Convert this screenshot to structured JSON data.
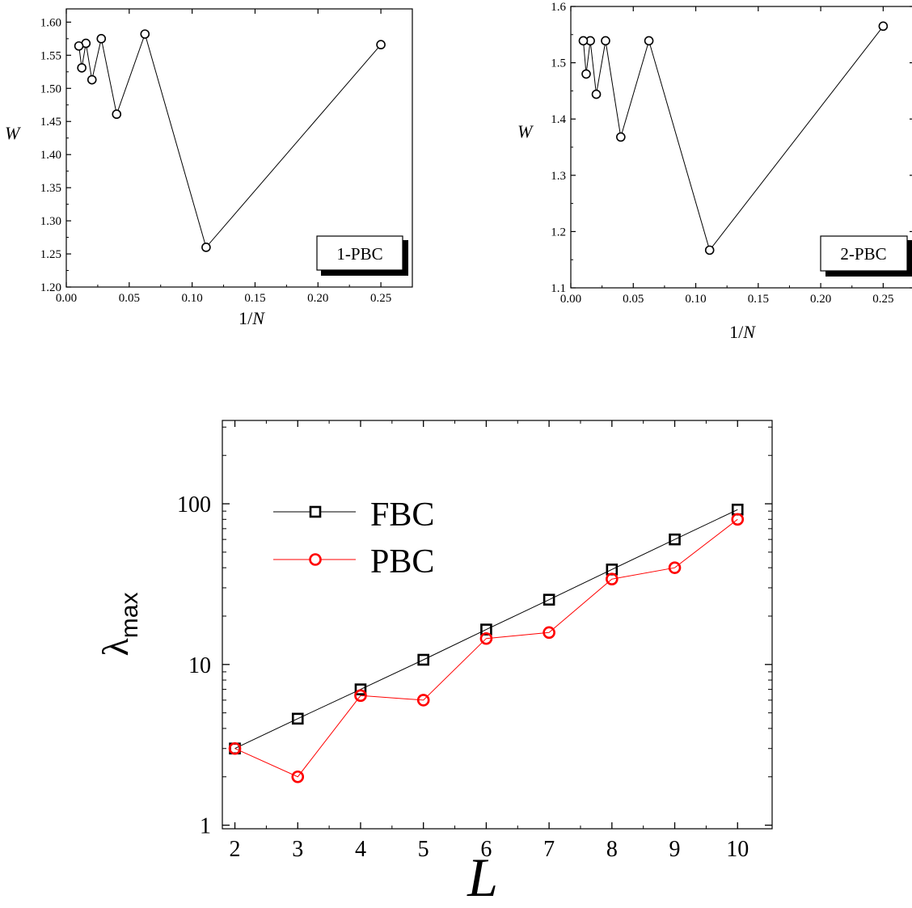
{
  "chart_data": [
    {
      "type": "line",
      "xlabel": "1/N",
      "ylabel": "W",
      "xlim": [
        0.0,
        0.275
      ],
      "ylim": [
        1.2,
        1.62
      ],
      "xticks": [
        "0.00",
        "0.05",
        "0.10",
        "0.15",
        "0.20",
        "0.25"
      ],
      "yticks": [
        "1.20",
        "1.25",
        "1.30",
        "1.35",
        "1.40",
        "1.45",
        "1.50",
        "1.55",
        "1.60"
      ],
      "legend_box": "1-PBC",
      "series": [
        {
          "marker": "circle",
          "x": [
            0.25,
            0.1111,
            0.0625,
            0.04,
            0.0278,
            0.0204,
            0.0156,
            0.0123,
            0.01
          ],
          "y": [
            1.566,
            1.26,
            1.582,
            1.461,
            1.575,
            1.513,
            1.568,
            1.531,
            1.564
          ]
        }
      ]
    },
    {
      "type": "line",
      "xlabel": "1/N",
      "ylabel": "W",
      "xlim": [
        0.0,
        0.275
      ],
      "ylim": [
        1.1,
        1.6
      ],
      "xticks": [
        "0.00",
        "0.05",
        "0.10",
        "0.15",
        "0.20",
        "0.25"
      ],
      "yticks": [
        "1.1",
        "1.2",
        "1.3",
        "1.4",
        "1.5",
        "1.6"
      ],
      "legend_box": "2-PBC",
      "series": [
        {
          "marker": "circle",
          "x": [
            0.25,
            0.1111,
            0.0625,
            0.04,
            0.0278,
            0.0204,
            0.0156,
            0.0123,
            0.01
          ],
          "y": [
            1.565,
            1.167,
            1.539,
            1.368,
            1.539,
            1.444,
            1.539,
            1.48,
            1.539
          ]
        }
      ]
    },
    {
      "type": "line",
      "xlabel": "L",
      "ylabel": "λmax",
      "xlim": [
        1.8,
        10.55
      ],
      "ylim": [
        0.95,
        330
      ],
      "yscale": "log",
      "xticks": [
        "2",
        "3",
        "4",
        "5",
        "6",
        "7",
        "8",
        "9",
        "10"
      ],
      "yticks": [
        "1",
        "10",
        "100"
      ],
      "legend_position": "top-left",
      "series": [
        {
          "name": "FBC",
          "color": "#000000",
          "marker": "square",
          "x": [
            2,
            3,
            4,
            5,
            6,
            7,
            8,
            9,
            10
          ],
          "y": [
            3.0,
            4.6,
            7.0,
            10.7,
            16.5,
            25.3,
            39.0,
            60.0,
            92.0
          ]
        },
        {
          "name": "PBC",
          "color": "#ff0000",
          "marker": "circle",
          "x": [
            2,
            3,
            4,
            5,
            6,
            7,
            8,
            9,
            10
          ],
          "y": [
            3.0,
            2.0,
            6.4,
            6.0,
            14.5,
            15.8,
            34.0,
            40.0,
            80.0
          ]
        }
      ]
    }
  ]
}
